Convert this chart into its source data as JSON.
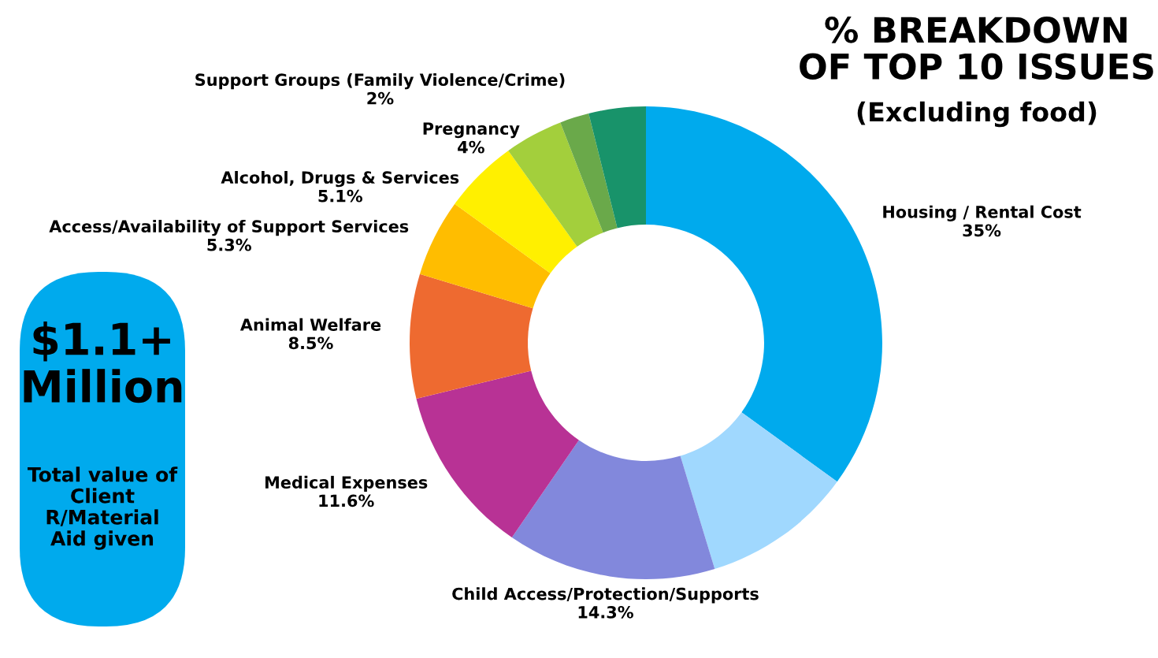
{
  "chart_data": {
    "type": "donut",
    "title": "% BREAKDOWN\nOF TOP 10 ISSUES",
    "subtitle": "(Excluding food)",
    "categories": [
      "Housing / Rental Cost",
      null,
      "Child Access/Protection/Supports",
      "Medical Expenses",
      "Animal Welfare",
      "Access/Availability of Support Services",
      "Alcohol, Drugs & Services",
      "Pregnancy",
      "Support Groups (Family Violence/Crime)",
      null
    ],
    "values": [
      35,
      10.3,
      14.3,
      11.6,
      8.5,
      5.3,
      5.1,
      4,
      2,
      3.9
    ],
    "value_labels": [
      "35%",
      null,
      "14.3%",
      "11.6%",
      "8.5%",
      "5.3%",
      "5.1%",
      "4%",
      "2%",
      null
    ],
    "colors": [
      "#00aaed",
      "#a0d8fe",
      "#8288dc",
      "#b83295",
      "#ee6a30",
      "#ffbd00",
      "#fff000",
      "#a3cf3c",
      "#6aa94a",
      "#18936a"
    ],
    "annotations": [
      "$1.1+\nMillion",
      "Total value of\nClient\nR/Material\nAid given"
    ],
    "legend": false
  }
}
